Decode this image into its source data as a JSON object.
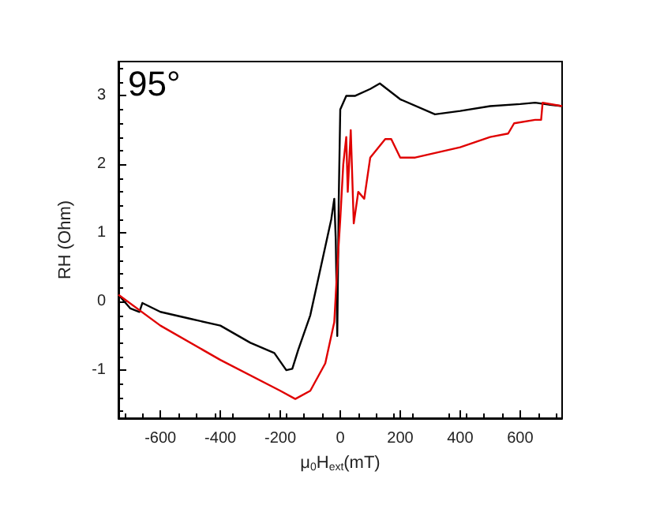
{
  "chart_data": {
    "type": "line",
    "xlabel": "μ$_{0}$H$_{ext}$(mT)",
    "ylabel": "RH (Ohm)",
    "annotations": [
      "95°"
    ],
    "xlim": [
      -740,
      740
    ],
    "xticks": [
      -600,
      -400,
      -200,
      0,
      200,
      400,
      600
    ],
    "ylim": [
      -1.7,
      3.5
    ],
    "yticks": [
      -1,
      0,
      1,
      2,
      3
    ],
    "marker": "none",
    "line_style": "solid",
    "series": [
      {
        "color": "#000000",
        "x": [
          -740,
          -700,
          -670,
          -660,
          -600,
          -500,
          -400,
          -300,
          -220,
          -180,
          -160,
          -140,
          -100,
          -60,
          -40,
          -30,
          -20,
          -15,
          -10,
          -5,
          0,
          20,
          50,
          100,
          132,
          200,
          316,
          400,
          500,
          600,
          650,
          700,
          740
        ],
        "values": [
          0.1,
          -0.1,
          -0.15,
          -0.02,
          -0.15,
          -0.25,
          -0.35,
          -0.6,
          -0.75,
          -1.0,
          -0.98,
          -0.7,
          -0.2,
          0.6,
          1.0,
          1.2,
          1.5,
          0.9,
          -0.5,
          1.5,
          2.8,
          3.0,
          3.0,
          3.1,
          3.18,
          2.95,
          2.73,
          2.78,
          2.85,
          2.88,
          2.9,
          2.87,
          2.85
        ]
      },
      {
        "color": "#e00000",
        "x": [
          -740,
          -600,
          -400,
          -200,
          -150,
          -100,
          -50,
          -20,
          -10,
          0,
          10,
          20,
          25,
          35,
          45,
          60,
          80,
          100,
          150,
          170,
          200,
          250,
          400,
          500,
          560,
          580,
          650,
          670,
          675,
          740
        ],
        "values": [
          0.1,
          -0.35,
          -0.85,
          -1.3,
          -1.42,
          -1.3,
          -0.9,
          -0.3,
          0.5,
          1.2,
          2.0,
          2.4,
          1.6,
          2.5,
          1.14,
          1.6,
          1.5,
          2.1,
          2.37,
          2.37,
          2.1,
          2.1,
          2.25,
          2.4,
          2.45,
          2.6,
          2.65,
          2.65,
          2.9,
          2.85
        ]
      }
    ]
  }
}
